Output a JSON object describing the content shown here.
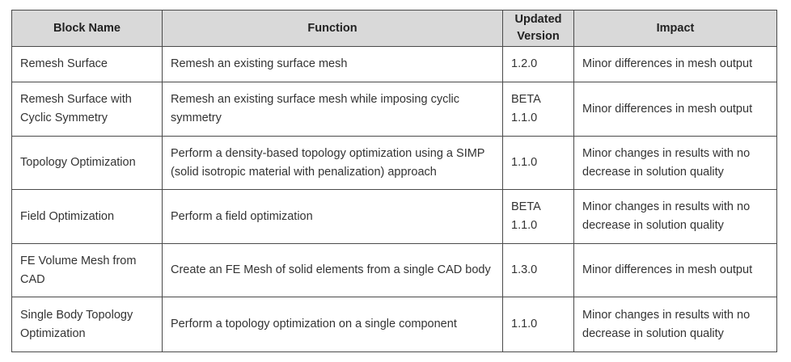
{
  "headers": {
    "block_name": "Block Name",
    "function": "Function",
    "version_line1": "Updated",
    "version_line2": "Version",
    "impact": "Impact"
  },
  "rows": [
    {
      "name": "Remesh Surface",
      "function": "Remesh an existing surface mesh",
      "version": "1.2.0",
      "impact": "Minor differences in mesh output"
    },
    {
      "name": "Remesh Surface with Cyclic Symmetry",
      "function": "Remesh an existing surface mesh while imposing cyclic symmetry",
      "version": "BETA 1.1.0",
      "impact": "Minor differences in mesh output"
    },
    {
      "name": "Topology Optimization",
      "function": "Perform a density-based topology optimization using a SIMP (solid isotropic material with penalization) approach",
      "version": "1.1.0",
      "impact": "Minor changes in results with no decrease in solution quality"
    },
    {
      "name": "Field Optimization",
      "function": "Perform a field optimization",
      "version": "BETA 1.1.0",
      "impact": "Minor changes in results with no decrease in solution quality"
    },
    {
      "name": "FE Volume Mesh from CAD",
      "function": "Create an FE Mesh of solid elements from a single CAD body",
      "version": "1.3.0",
      "impact": "Minor differences in mesh output"
    },
    {
      "name": "Single Body Topology Optimization",
      "function": "Perform a topology optimization on a single component",
      "version": "1.1.0",
      "impact": "Minor changes in results with no decrease in solution quality"
    }
  ]
}
